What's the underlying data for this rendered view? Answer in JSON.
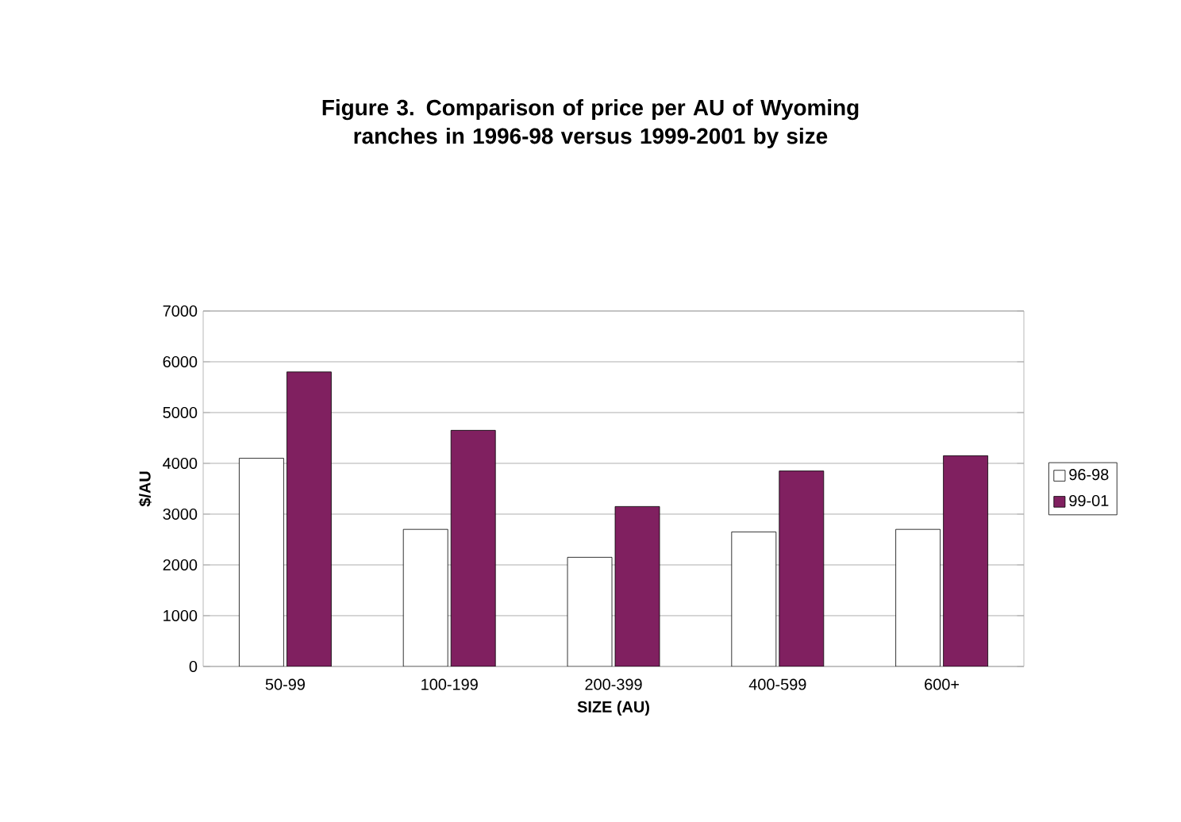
{
  "chart_data": {
    "type": "bar",
    "title": "Figure 3.  Comparison of price per AU of Wyoming ranches in 1996-98 versus 1999-2001 by size",
    "xlabel": "SIZE (AU)",
    "ylabel": "$/AU",
    "categories": [
      "50-99",
      "100-199",
      "200-399",
      "400-599",
      "600+"
    ],
    "series": [
      {
        "name": "96-98",
        "color": "#ffffff",
        "values": [
          4100,
          2700,
          2150,
          2650,
          2700
        ]
      },
      {
        "name": "99-01",
        "color": "#802060",
        "values": [
          5800,
          4650,
          3150,
          3850,
          4150
        ]
      }
    ],
    "ylim": [
      0,
      7000
    ],
    "yticks": [
      0,
      1000,
      2000,
      3000,
      4000,
      5000,
      6000,
      7000
    ],
    "grid": "y",
    "legend": "right"
  }
}
